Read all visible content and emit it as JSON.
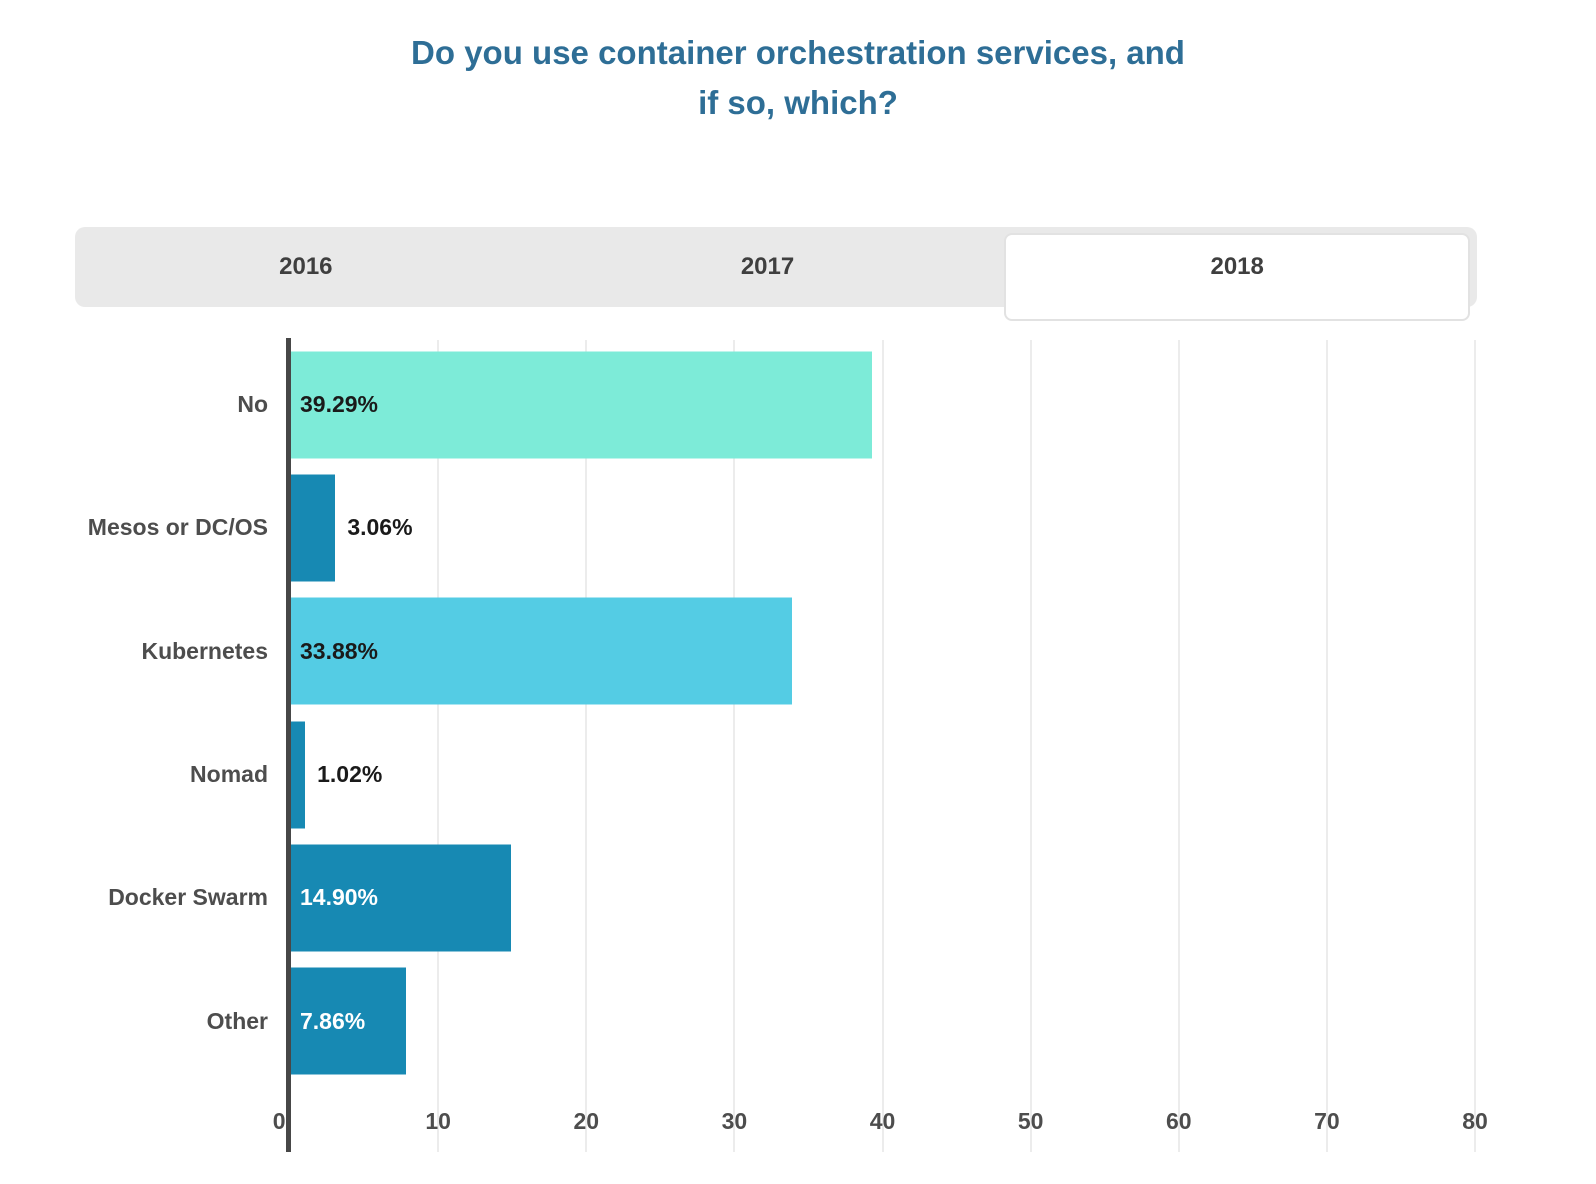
{
  "title": {
    "line1": "Do you use container orchestration services, and",
    "line2": "if so, which?"
  },
  "tabs": {
    "items": [
      "2016",
      "2017",
      "2018"
    ],
    "active": "2018"
  },
  "chart_data": {
    "type": "bar",
    "orientation": "horizontal",
    "title": "Do you use container orchestration services, and if so, which?",
    "categories": [
      "No",
      "Mesos or DC/OS",
      "Kubernetes",
      "Nomad",
      "Docker Swarm",
      "Other"
    ],
    "values": [
      39.29,
      3.06,
      33.88,
      1.02,
      14.9,
      7.86
    ],
    "value_labels": [
      "39.29%",
      "3.06%",
      "33.88%",
      "1.02%",
      "14.90%",
      "7.86%"
    ],
    "bar_colors": [
      "#7debd8",
      "#1789b3",
      "#54cce4",
      "#1789b3",
      "#1789b3",
      "#1789b3"
    ],
    "label_styles": [
      {
        "position": "inside",
        "color": "#1a1a1a"
      },
      {
        "position": "outside",
        "color": "#1a1a1a"
      },
      {
        "position": "inside",
        "color": "#1a1a1a"
      },
      {
        "position": "outside",
        "color": "#1a1a1a"
      },
      {
        "position": "inside",
        "color": "#ffffff"
      },
      {
        "position": "inside",
        "color": "#ffffff"
      }
    ],
    "xlabel": "",
    "ylabel": "",
    "xlim": [
      0,
      80
    ],
    "x_ticks": [
      "0",
      "10",
      "20",
      "30",
      "40",
      "50",
      "60",
      "70",
      "80"
    ],
    "grid": true,
    "legend": false
  },
  "colors": {
    "title": "#2e6e96",
    "axis_line": "#474747",
    "gridline": "#ececec",
    "tab_bar_bg": "#e9e9e9",
    "active_tab_bg": "#ffffff",
    "active_tab_border": "#e2e2e2",
    "tab_text": "#3f3f3f",
    "category_label": "#4d4d4d",
    "tick_label": "#4d4d4d"
  }
}
